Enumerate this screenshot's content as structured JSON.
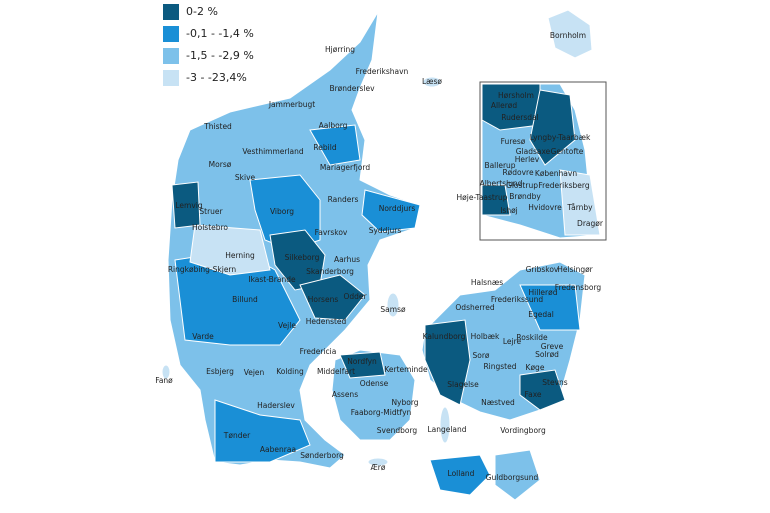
{
  "legend": {
    "items": [
      {
        "label": "0-2 %",
        "color": "#0b5a80"
      },
      {
        "label": "-0,1 - -1,4 %",
        "color": "#1a8fd6"
      },
      {
        "label": "-1,5 - -2,9 %",
        "color": "#7dc1ea"
      },
      {
        "label": "-3 - -23,4%",
        "color": "#c7e2f4"
      }
    ]
  },
  "municipalities": [
    "Bornholm",
    "Hjørring",
    "Frederikshavn",
    "Læsø",
    "Brønderslev",
    "Jammerbugt",
    "Aalborg",
    "Thisted",
    "Rebild",
    "Vesthimmerland",
    "Morsø",
    "Mariagerfjord",
    "Skive",
    "Lemvig",
    "Struer",
    "Holstebro",
    "Viborg",
    "Randers",
    "Norddjurs",
    "Syddjurs",
    "Favrskov",
    "Herning",
    "Silkeborg",
    "Aarhus",
    "Ringkøbing-Skjern",
    "Skanderborg",
    "Ikast-Brande",
    "Horsens",
    "Odder",
    "Samsø",
    "Billund",
    "Vejle",
    "Hedensted",
    "Varde",
    "Fredericia",
    "Nordfyn",
    "Kerteminde",
    "Middelfart",
    "Fanø",
    "Esbjerg",
    "Vejen",
    "Kolding",
    "Odense",
    "Assens",
    "Nyborg",
    "Haderslev",
    "Faaborg-Midtfyn",
    "Svendborg",
    "Tønder",
    "Aabenraa",
    "Langeland",
    "Sønderborg",
    "Ærø",
    "Lolland",
    "Guldborgsund",
    "Vordingborg",
    "Næstved",
    "Faxe",
    "Stevns",
    "Køge",
    "Solrød",
    "Ringsted",
    "Sorø",
    "Slagelse",
    "Kalundborg",
    "Holbæk",
    "Odsherred",
    "Lejre",
    "Roskilde",
    "Greve",
    "Halsnæs",
    "Gribskov",
    "Helsingør",
    "Frederikssund",
    "Hillerød",
    "Fredensborg",
    "Egedal"
  ],
  "inset_municipalities": [
    "Hørsholm",
    "Allerød",
    "Rudersdal",
    "Lyngby-Taarbæk",
    "Furesø",
    "Gladsaxe",
    "Gentofte",
    "Herlev",
    "Ballerup",
    "Rødovre",
    "København",
    "Frederiksberg",
    "Albertslund",
    "Glostrup",
    "Brøndby",
    "Høje-Taastrup",
    "Hvidovre",
    "Ishøj",
    "Tårnby",
    "Dragør"
  ]
}
